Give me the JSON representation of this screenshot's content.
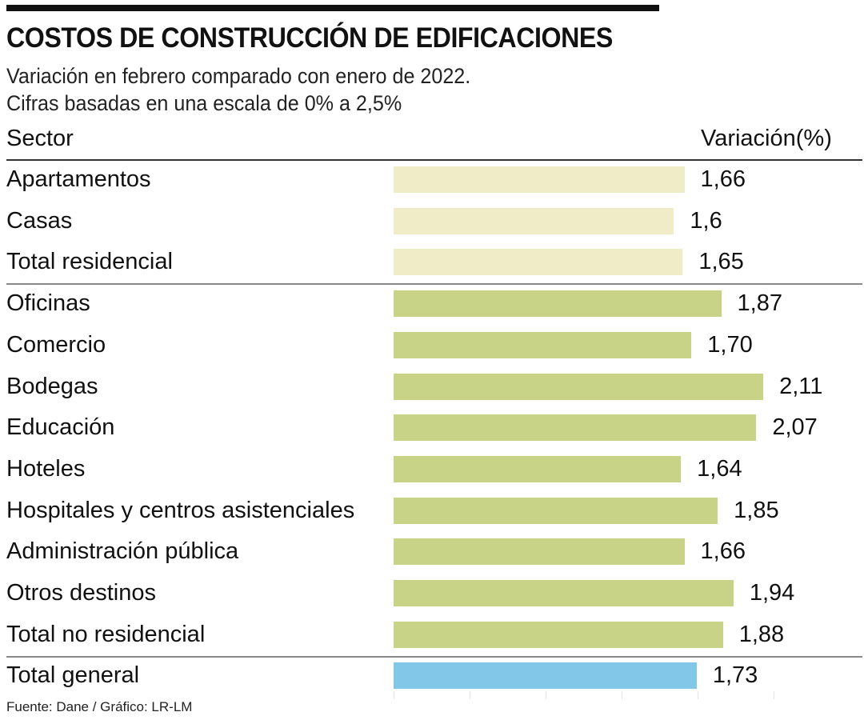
{
  "chart_data": {
    "type": "bar",
    "orientation": "horizontal",
    "title": "COSTOS DE CONSTRUCCIÓN DE EDIFICACIONES",
    "subtitle": [
      "Variación en febrero comparado con enero de 2022.",
      "Cifras basadas en una escala de 0% a 2,5%"
    ],
    "column_headers": {
      "category": "Sector",
      "value": "Variación(%)"
    },
    "xlim": [
      0,
      2.5
    ],
    "categories": [
      "Apartamentos",
      "Casas",
      "Total residencial",
      "Oficinas",
      "Comercio",
      "Bodegas",
      "Educación",
      "Hoteles",
      "Hospitales y centros asistenciales",
      "Administración pública",
      "Otros destinos",
      "Total no residencial",
      "Total general"
    ],
    "values": [
      1.66,
      1.6,
      1.65,
      1.87,
      1.7,
      2.11,
      2.07,
      1.64,
      1.85,
      1.66,
      1.94,
      1.88,
      1.73
    ],
    "value_labels": [
      "1,66",
      "1,6",
      "1,65",
      "1,87",
      "1,70",
      "2,11",
      "2,07",
      "1,64",
      "1,85",
      "1,66",
      "1,94",
      "1,88",
      "1,73"
    ],
    "groups": [
      "residencial",
      "residencial",
      "residencial",
      "no-residencial",
      "no-residencial",
      "no-residencial",
      "no-residencial",
      "no-residencial",
      "no-residencial",
      "no-residencial",
      "no-residencial",
      "no-residencial",
      "general"
    ],
    "colors": {
      "residencial": "#f0ecc8",
      "no-residencial": "#c8d388",
      "general": "#82c6e8"
    },
    "source": "Fuente: Dane / Gráfico: LR-LM"
  }
}
